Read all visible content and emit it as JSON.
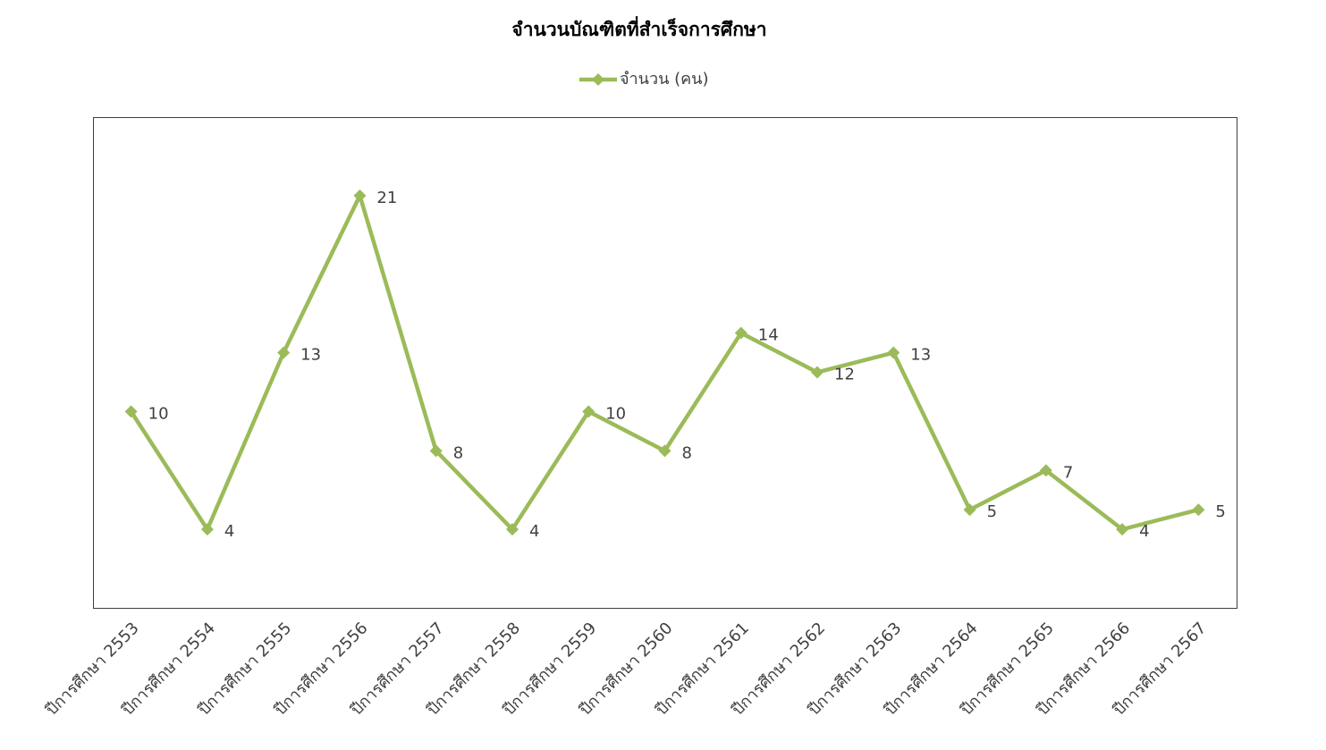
{
  "chart_data": {
    "type": "line",
    "title": "จำนวนบัณฑิตที่สำเร็จการศึกษา",
    "categories": [
      "ปีการศึกษา 2553",
      "ปีการศึกษา 2554",
      "ปีการศึกษา 2555",
      "ปีการศึกษา 2556",
      "ปีการศึกษา 2557",
      "ปีการศึกษา 2558",
      "ปีการศึกษา 2559",
      "ปีการศึกษา 2560",
      "ปีการศึกษา 2561",
      "ปีการศึกษา 2562",
      "ปีการศึกษา 2563",
      "ปีการศึกษา 2564",
      "ปีการศึกษา 2565",
      "ปีการศึกษา 2566",
      "ปีการศึกษา 2567"
    ],
    "series": [
      {
        "name": "จำนวน (คน)",
        "color": "#9bbb59",
        "values": [
          10,
          4,
          13,
          21,
          8,
          4,
          10,
          8,
          14,
          12,
          13,
          5,
          7,
          4,
          5
        ]
      }
    ],
    "ylim": [
      0,
      25
    ],
    "data_labels": true,
    "legend": "top"
  }
}
